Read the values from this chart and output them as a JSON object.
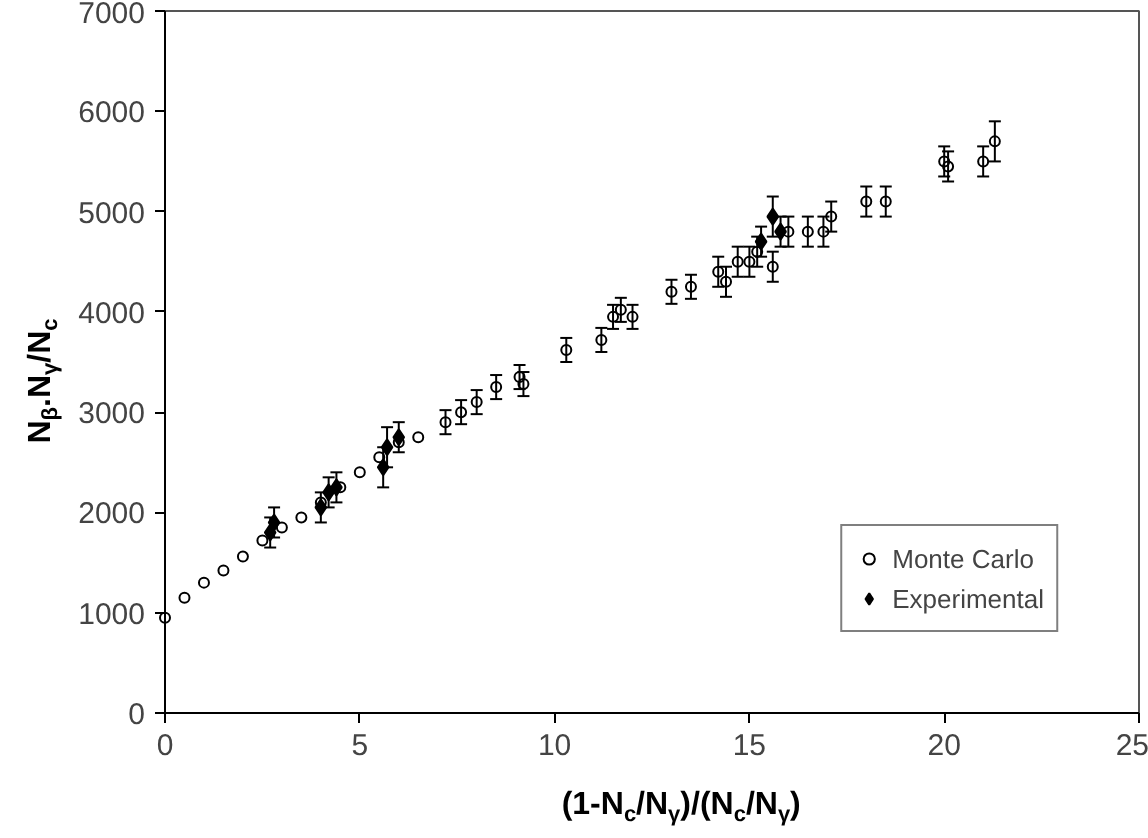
{
  "chart_data": {
    "type": "scatter",
    "xlabel": "(1-N$_{c}$/N$_{γ}$)/(N$_{c}$/N$_{γ}$)",
    "ylabel": "N$_{β}$.N$_{γ}$/N$_{c}$",
    "xlim": [
      0,
      25
    ],
    "xticks": [
      0,
      5,
      10,
      15,
      20,
      25
    ],
    "ylim": [
      0,
      7000
    ],
    "yticks": [
      0,
      1000,
      2000,
      3000,
      4000,
      5000,
      6000,
      7000
    ],
    "grid": false,
    "legend": "bottom right",
    "series": [
      {
        "name": "Monte Carlo",
        "color": "#000000",
        "marker": "circle",
        "x": [
          0,
          0.5,
          1,
          1.5,
          2,
          2.5,
          3,
          3.5,
          4,
          4.5,
          5,
          5.5,
          6,
          6.5,
          7.2,
          7.6,
          8,
          8.5,
          9.1,
          9.2,
          10.3,
          11.2,
          11.5,
          11.7,
          12,
          13,
          13.5,
          14.2,
          14.4,
          14.7,
          15,
          15.2,
          15.6,
          16,
          16.5,
          16.9,
          17.1,
          18,
          18.5,
          20,
          20.1,
          21,
          21.3
        ],
        "values": [
          950,
          1150,
          1300,
          1420,
          1560,
          1720,
          1850,
          1950,
          2100,
          2250,
          2400,
          2550,
          2700,
          2750,
          2900,
          3000,
          3100,
          3250,
          3350,
          3280,
          3620,
          3720,
          3950,
          4020,
          3950,
          4200,
          4250,
          4400,
          4300,
          4500,
          4500,
          4600,
          4450,
          4800,
          4800,
          4800,
          4950,
          5100,
          5100,
          5500,
          5450,
          5500,
          5700
        ],
        "errors": [
          null,
          null,
          null,
          null,
          null,
          null,
          null,
          null,
          null,
          null,
          null,
          null,
          null,
          null,
          120,
          120,
          120,
          120,
          120,
          120,
          120,
          120,
          120,
          120,
          120,
          120,
          120,
          150,
          150,
          150,
          150,
          150,
          150,
          150,
          150,
          150,
          150,
          150,
          150,
          150,
          150,
          150,
          200
        ]
      },
      {
        "name": "Experimental",
        "color": "#000000",
        "marker": "diamond",
        "x": [
          2.7,
          2.8,
          4,
          4.2,
          4.4,
          5.6,
          5.7,
          6,
          15.3,
          15.6,
          15.8
        ],
        "values": [
          1800,
          1900,
          2050,
          2200,
          2250,
          2450,
          2650,
          2750,
          4700,
          4950,
          4800
        ],
        "errors": [
          150,
          150,
          150,
          150,
          150,
          200,
          200,
          150,
          150,
          200,
          150
        ]
      }
    ]
  }
}
